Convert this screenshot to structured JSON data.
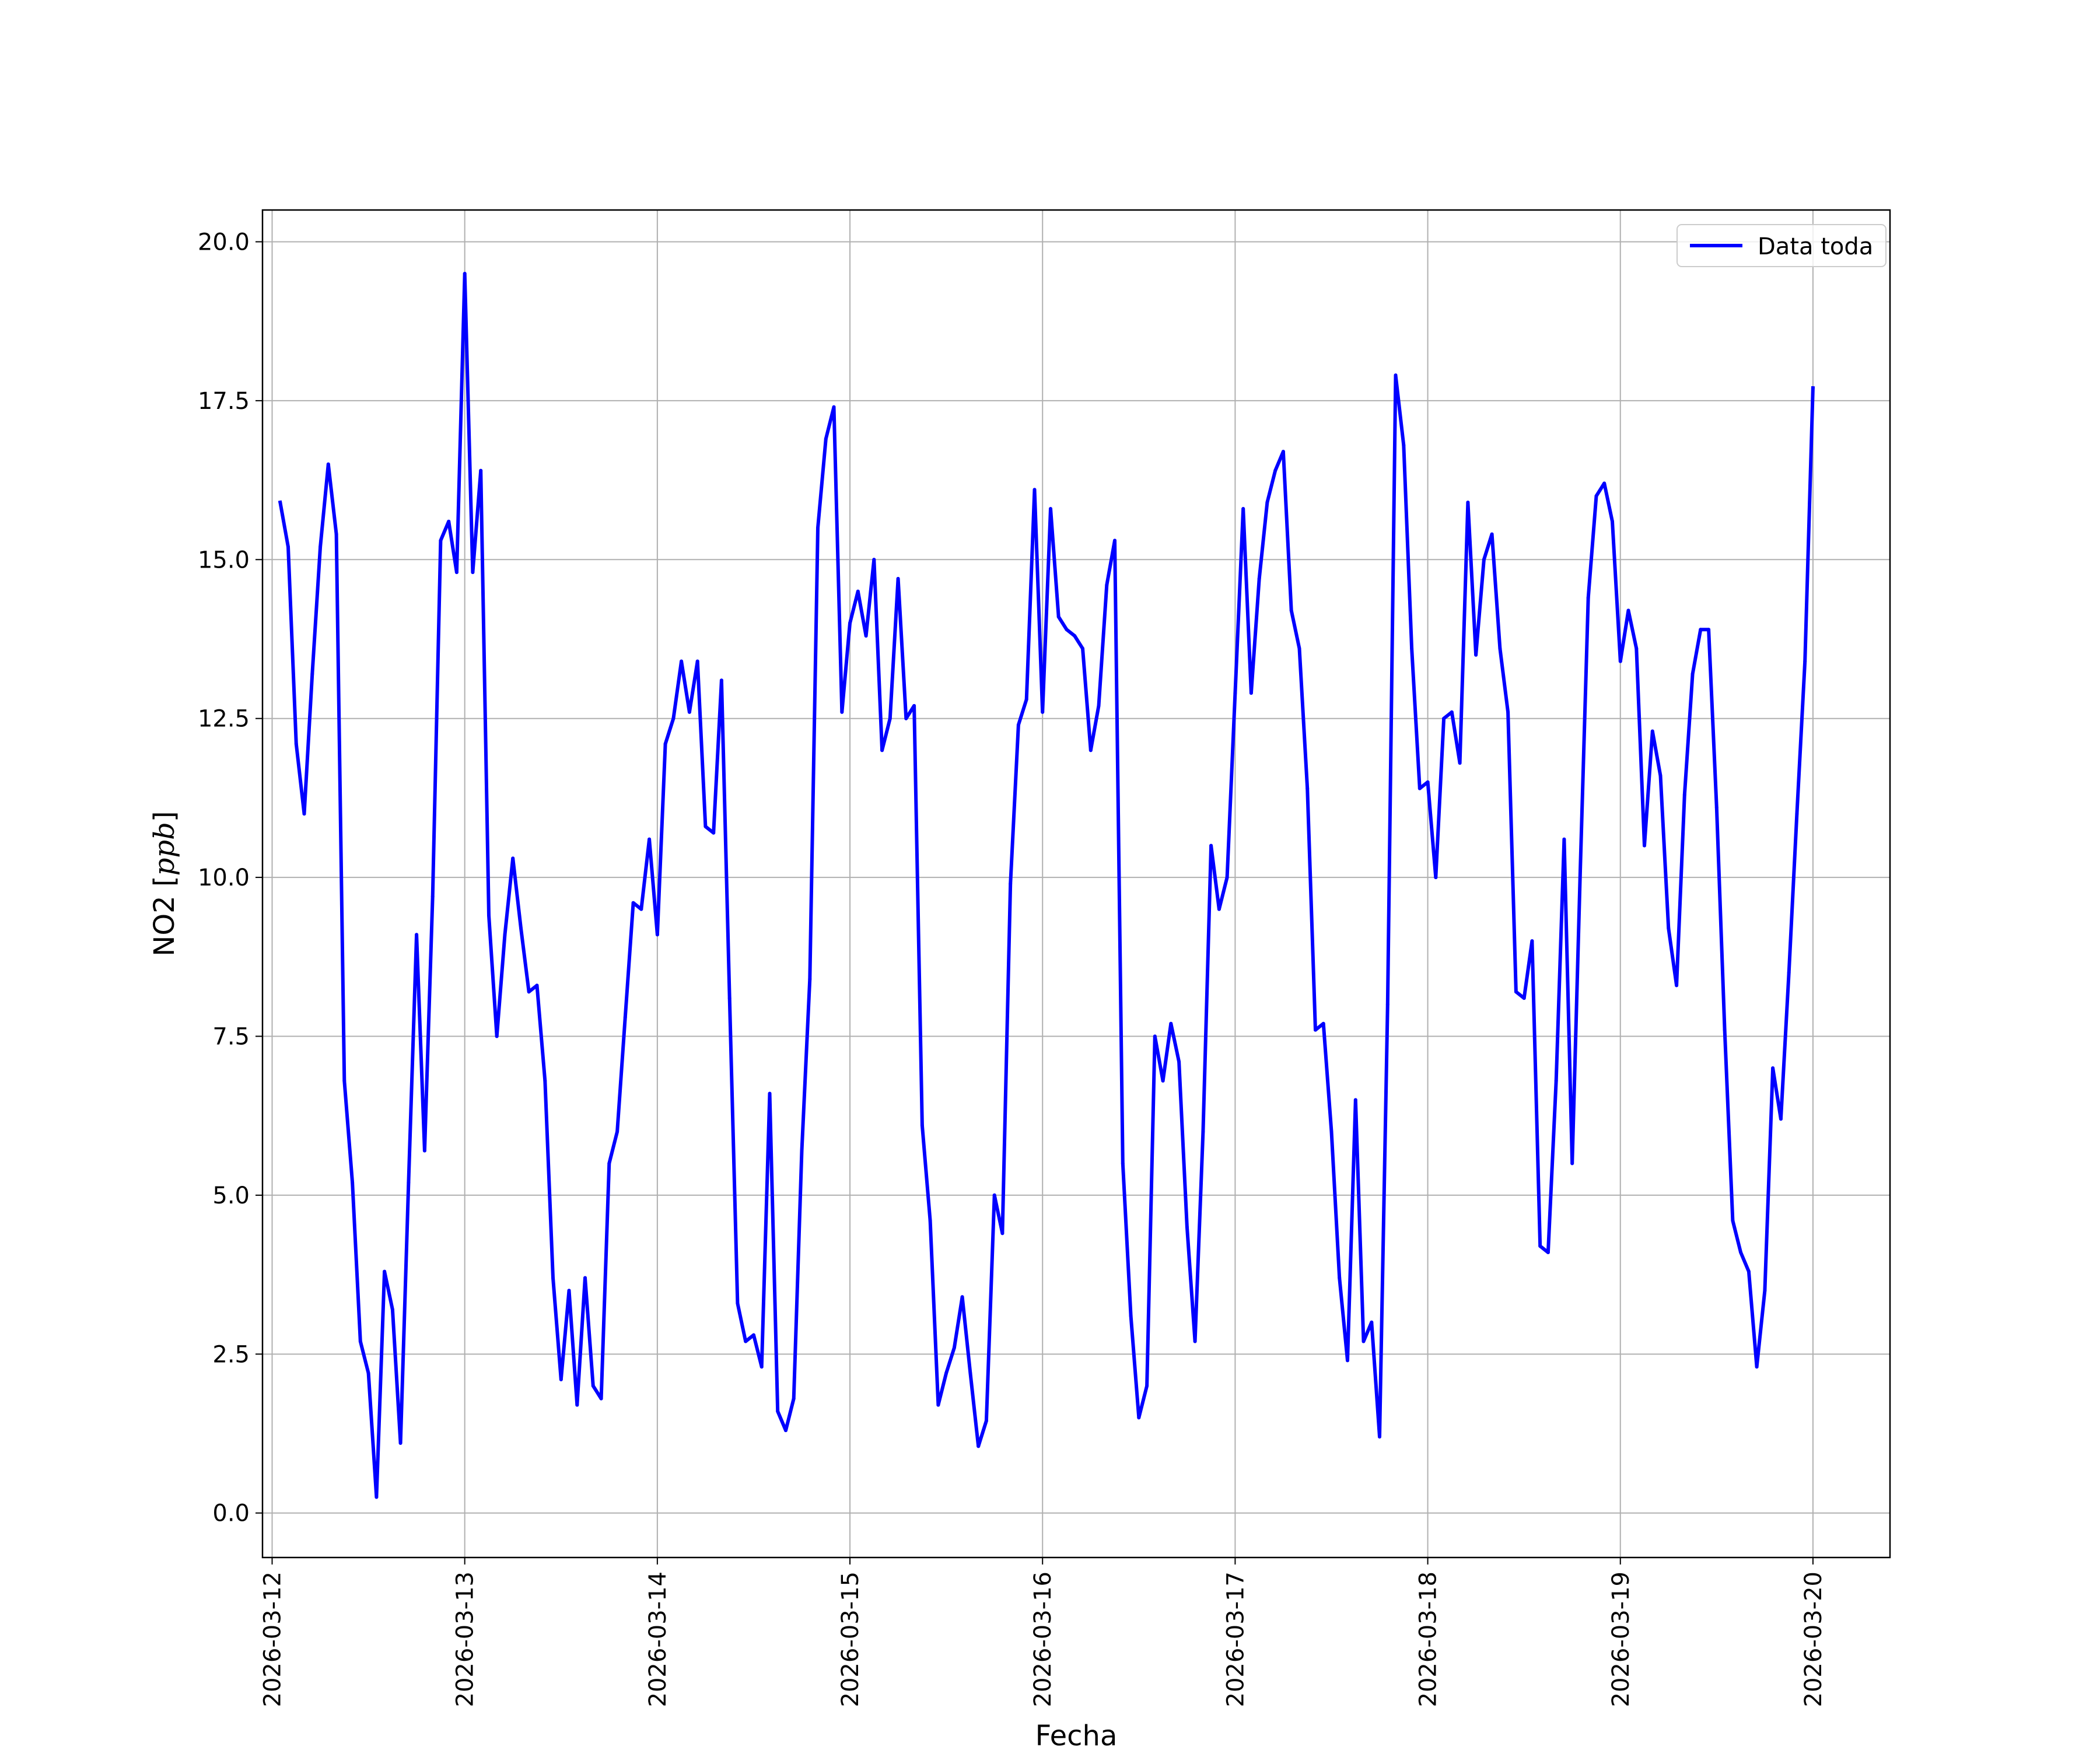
{
  "chart_data": {
    "type": "line",
    "xlabel": "Fecha",
    "ylabel_plain": "NO2 [",
    "ylabel_math": "ppb",
    "ylabel_close": "]",
    "ylim": [
      -0.7,
      20.5
    ],
    "yticks": [
      0.0,
      2.5,
      5.0,
      7.5,
      10.0,
      12.5,
      15.0,
      17.5,
      20.0
    ],
    "ytick_labels": [
      "0.0",
      "2.5",
      "5.0",
      "7.5",
      "10.0",
      "12.5",
      "15.0",
      "17.5",
      "20.0"
    ],
    "xlim": [
      -0.05,
      8.4
    ],
    "xticks": [
      0,
      1,
      2,
      3,
      4,
      5,
      6,
      7,
      8
    ],
    "xtick_labels": [
      "2026-03-12",
      "2026-03-13",
      "2026-03-14",
      "2026-03-15",
      "2026-03-16",
      "2026-03-17",
      "2026-03-18",
      "2026-03-19",
      "2026-03-20"
    ],
    "grid": true,
    "legend_position": "upper right",
    "colors": {
      "series": "#0000ff",
      "grid": "#b0b0b0",
      "axes": "#000000"
    },
    "series": [
      {
        "name": "Data toda",
        "x": [
          "2026-03-12 01:00",
          "2026-03-12 02:00",
          "2026-03-12 03:00",
          "2026-03-12 04:00",
          "2026-03-12 05:00",
          "2026-03-12 06:00",
          "2026-03-12 07:00",
          "2026-03-12 08:00",
          "2026-03-12 09:00",
          "2026-03-12 10:00",
          "2026-03-12 11:00",
          "2026-03-12 12:00",
          "2026-03-12 13:00",
          "2026-03-12 14:00",
          "2026-03-12 15:00",
          "2026-03-12 16:00",
          "2026-03-12 17:00",
          "2026-03-12 18:00",
          "2026-03-12 19:00",
          "2026-03-12 20:00",
          "2026-03-12 21:00",
          "2026-03-12 22:00",
          "2026-03-12 23:00",
          "2026-03-13 00:00",
          "2026-03-13 01:00",
          "2026-03-13 02:00",
          "2026-03-13 03:00",
          "2026-03-13 04:00",
          "2026-03-13 05:00",
          "2026-03-13 06:00",
          "2026-03-13 07:00",
          "2026-03-13 08:00",
          "2026-03-13 09:00",
          "2026-03-13 10:00",
          "2026-03-13 11:00",
          "2026-03-13 12:00",
          "2026-03-13 13:00",
          "2026-03-13 14:00",
          "2026-03-13 15:00",
          "2026-03-13 16:00",
          "2026-03-13 17:00",
          "2026-03-13 18:00",
          "2026-03-13 19:00",
          "2026-03-13 20:00",
          "2026-03-13 21:00",
          "2026-03-13 22:00",
          "2026-03-13 23:00",
          "2026-03-14 00:00",
          "2026-03-14 01:00",
          "2026-03-14 02:00",
          "2026-03-14 03:00",
          "2026-03-14 04:00",
          "2026-03-14 05:00",
          "2026-03-14 06:00",
          "2026-03-14 07:00",
          "2026-03-14 08:00",
          "2026-03-14 09:00",
          "2026-03-14 10:00",
          "2026-03-14 11:00",
          "2026-03-14 12:00",
          "2026-03-14 13:00",
          "2026-03-14 14:00",
          "2026-03-14 15:00",
          "2026-03-14 16:00",
          "2026-03-14 17:00",
          "2026-03-14 18:00",
          "2026-03-14 19:00",
          "2026-03-14 20:00",
          "2026-03-14 21:00",
          "2026-03-14 22:00",
          "2026-03-14 23:00",
          "2026-03-15 00:00",
          "2026-03-15 01:00",
          "2026-03-15 02:00",
          "2026-03-15 03:00",
          "2026-03-15 04:00",
          "2026-03-15 05:00",
          "2026-03-15 06:00",
          "2026-03-15 07:00",
          "2026-03-15 08:00",
          "2026-03-15 09:00",
          "2026-03-15 10:00",
          "2026-03-15 11:00",
          "2026-03-15 12:00",
          "2026-03-15 13:00",
          "2026-03-15 14:00",
          "2026-03-15 15:00",
          "2026-03-15 16:00",
          "2026-03-15 17:00",
          "2026-03-15 18:00",
          "2026-03-15 19:00",
          "2026-03-15 20:00",
          "2026-03-15 21:00",
          "2026-03-15 22:00",
          "2026-03-15 23:00",
          "2026-03-16 00:00",
          "2026-03-16 01:00",
          "2026-03-16 02:00",
          "2026-03-16 03:00",
          "2026-03-16 04:00",
          "2026-03-16 05:00",
          "2026-03-16 06:00",
          "2026-03-16 07:00",
          "2026-03-16 08:00",
          "2026-03-16 09:00",
          "2026-03-16 10:00",
          "2026-03-16 11:00",
          "2026-03-16 12:00",
          "2026-03-16 13:00",
          "2026-03-16 14:00",
          "2026-03-16 15:00",
          "2026-03-16 16:00",
          "2026-03-16 17:00",
          "2026-03-16 18:00",
          "2026-03-16 19:00",
          "2026-03-16 20:00",
          "2026-03-16 21:00",
          "2026-03-16 22:00",
          "2026-03-16 23:00",
          "2026-03-17 00:00",
          "2026-03-17 01:00",
          "2026-03-17 02:00",
          "2026-03-17 03:00",
          "2026-03-17 04:00",
          "2026-03-17 05:00",
          "2026-03-17 06:00",
          "2026-03-17 07:00",
          "2026-03-17 08:00",
          "2026-03-17 09:00",
          "2026-03-17 10:00",
          "2026-03-17 11:00",
          "2026-03-17 12:00",
          "2026-03-17 13:00",
          "2026-03-17 14:00",
          "2026-03-17 15:00",
          "2026-03-17 16:00",
          "2026-03-17 17:00",
          "2026-03-17 18:00",
          "2026-03-17 19:00",
          "2026-03-17 20:00",
          "2026-03-17 21:00",
          "2026-03-17 22:00",
          "2026-03-17 23:00",
          "2026-03-18 00:00",
          "2026-03-18 01:00",
          "2026-03-18 02:00",
          "2026-03-18 03:00",
          "2026-03-18 04:00",
          "2026-03-18 05:00",
          "2026-03-18 06:00",
          "2026-03-18 07:00",
          "2026-03-18 08:00",
          "2026-03-18 09:00",
          "2026-03-18 10:00",
          "2026-03-18 11:00",
          "2026-03-18 12:00",
          "2026-03-18 13:00",
          "2026-03-18 14:00",
          "2026-03-18 15:00",
          "2026-03-18 16:00",
          "2026-03-18 17:00",
          "2026-03-18 18:00",
          "2026-03-18 19:00",
          "2026-03-18 20:00",
          "2026-03-18 21:00",
          "2026-03-18 22:00",
          "2026-03-18 23:00",
          "2026-03-19 00:00",
          "2026-03-19 01:00",
          "2026-03-19 02:00",
          "2026-03-19 03:00",
          "2026-03-19 04:00",
          "2026-03-19 05:00",
          "2026-03-19 06:00",
          "2026-03-19 07:00",
          "2026-03-19 08:00",
          "2026-03-19 09:00",
          "2026-03-19 10:00",
          "2026-03-19 11:00",
          "2026-03-19 12:00",
          "2026-03-19 13:00",
          "2026-03-19 14:00",
          "2026-03-19 15:00",
          "2026-03-19 16:00",
          "2026-03-19 17:00",
          "2026-03-19 18:00",
          "2026-03-19 19:00",
          "2026-03-19 20:00",
          "2026-03-19 21:00",
          "2026-03-19 22:00",
          "2026-03-19 23:00",
          "2026-03-20 00:00"
        ],
        "y": [
          15.9,
          15.2,
          12.1,
          11.0,
          13.2,
          15.2,
          16.5,
          15.4,
          6.8,
          5.2,
          2.7,
          2.2,
          0.25,
          3.8,
          3.2,
          1.1,
          5.2,
          9.1,
          5.7,
          9.7,
          15.3,
          15.6,
          14.8,
          19.5,
          14.8,
          16.4,
          9.4,
          7.5,
          9.1,
          10.3,
          9.2,
          8.2,
          8.3,
          6.8,
          3.7,
          2.1,
          3.5,
          1.7,
          3.7,
          2.0,
          1.8,
          5.5,
          6.0,
          7.8,
          9.6,
          9.5,
          10.6,
          9.1,
          12.1,
          12.5,
          13.4,
          12.6,
          13.4,
          10.8,
          10.7,
          13.1,
          8.1,
          3.3,
          2.7,
          2.8,
          2.3,
          6.6,
          1.6,
          1.3,
          1.8,
          5.7,
          8.4,
          15.5,
          16.9,
          17.4,
          12.6,
          14.0,
          14.5,
          13.8,
          15.0,
          12.0,
          12.5,
          14.7,
          12.5,
          12.7,
          6.1,
          4.6,
          1.7,
          2.2,
          2.6,
          3.4,
          2.2,
          1.05,
          1.45,
          5.0,
          4.4,
          9.9,
          12.4,
          12.8,
          16.1,
          12.6,
          15.8,
          14.1,
          13.9,
          13.8,
          13.6,
          12.0,
          12.7,
          14.6,
          15.3,
          5.5,
          3.1,
          1.5,
          2.0,
          7.5,
          6.8,
          7.7,
          7.1,
          4.5,
          2.7,
          6.0,
          10.5,
          9.5,
          10.0,
          12.9,
          15.8,
          12.9,
          14.7,
          15.9,
          16.4,
          16.7,
          14.2,
          13.6,
          11.4,
          7.6,
          7.7,
          6.0,
          3.7,
          2.4,
          6.5,
          2.7,
          3.0,
          1.2,
          8.0,
          17.9,
          16.8,
          13.6,
          11.4,
          11.5,
          10.0,
          12.5,
          12.6,
          11.8,
          15.9,
          13.5,
          15.0,
          15.4,
          13.6,
          12.6,
          8.2,
          8.1,
          9.0,
          4.2,
          4.1,
          6.8,
          10.6,
          5.5,
          10.1,
          14.4,
          16.0,
          16.2,
          15.6,
          13.4,
          14.2,
          13.6,
          10.5,
          12.3,
          11.6,
          9.2,
          8.3,
          11.3,
          13.2,
          13.9,
          13.9,
          11.1,
          7.6,
          4.6,
          4.1,
          3.8,
          2.3,
          3.5,
          7.0,
          6.2,
          8.5,
          11.0,
          13.4,
          17.7
        ]
      }
    ]
  }
}
